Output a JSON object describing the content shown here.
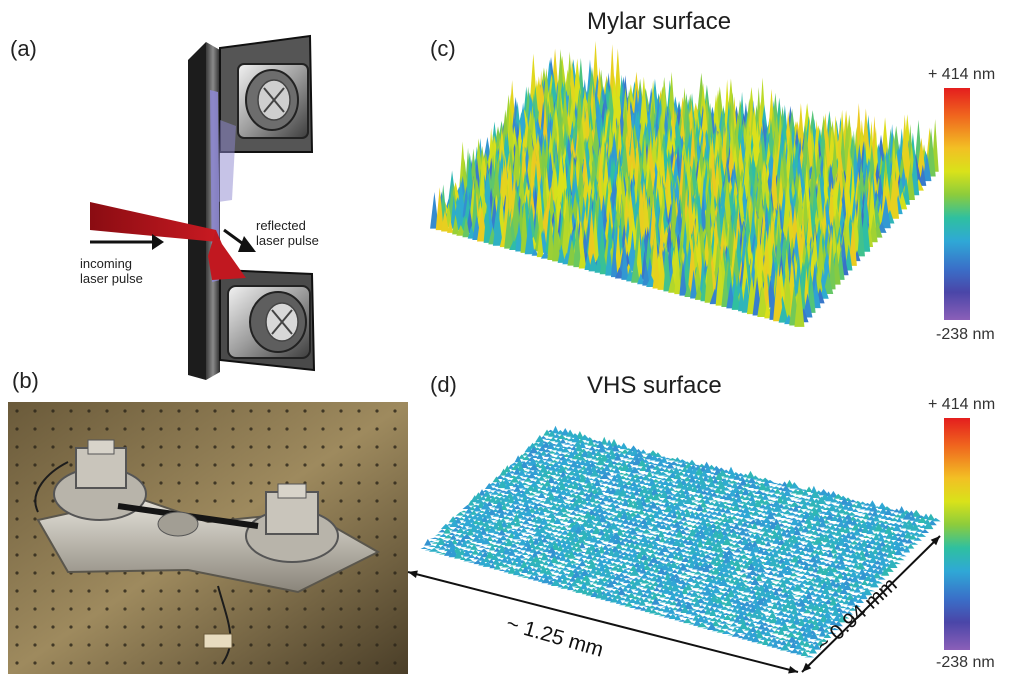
{
  "panels": {
    "a": {
      "label": "(a)",
      "incoming": [
        "incoming",
        "laser pulse"
      ],
      "reflected": [
        "reflected",
        "laser pulse"
      ]
    },
    "b": {
      "label": "(b)"
    },
    "c": {
      "label": "(c)",
      "title": "Mylar surface"
    },
    "d": {
      "label": "(d)",
      "title": "VHS surface"
    }
  },
  "colorbar": {
    "max_label": "+ 414 nm",
    "min_label": "-238 nm",
    "max_nm": 414,
    "min_nm": -238
  },
  "dimensions": {
    "length": "~ 1.25 mm",
    "width": "~ 0.94 mm"
  },
  "colors": {
    "laser": "#b3141c",
    "tape": "#8d87cf",
    "accent_yellow": "#e8e21a",
    "accent_cyan": "#2fb0d0"
  }
}
